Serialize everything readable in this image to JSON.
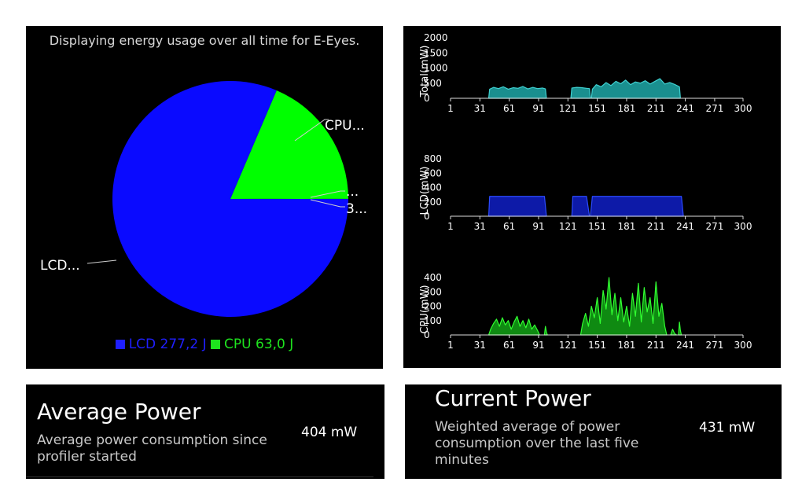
{
  "pie_panel": {
    "title": "Displaying energy usage over all time for E-Eyes.",
    "slice_labels": [
      "LCD...",
      "CPU...",
      "...",
      "3..."
    ],
    "legend": [
      {
        "label": "LCD 277,2 J",
        "color": "#1f1fff"
      },
      {
        "label": "CPU 63,0 J",
        "color": "#1ee31e"
      }
    ]
  },
  "colors": {
    "lcd": "#0a0aff",
    "cpu": "#00ff00",
    "total_line": "#3fd1d1",
    "total_fill": "#1a8f8f",
    "lcd_fill": "#0d1aa8",
    "lcd_line": "#2c4bff",
    "cpu_fill": "#0f8a12",
    "cpu_line": "#31ff31",
    "axis": "#dddddd"
  },
  "chart_data": [
    {
      "type": "pie",
      "slices": [
        {
          "name": "LCD",
          "value": 277.2,
          "color": "#0a0aff"
        },
        {
          "name": "CPU",
          "value": 63.0,
          "color": "#00ff00"
        },
        {
          "name": "",
          "value": 0.3,
          "color": "#00ff00"
        }
      ]
    },
    {
      "type": "area",
      "ylabel": "Total(mW)",
      "ylim": [
        0,
        2000
      ],
      "yticks": [
        0,
        500,
        1000,
        1500,
        2000
      ],
      "xlim": [
        1,
        300
      ],
      "xticks": [
        1,
        31,
        61,
        91,
        121,
        151,
        181,
        211,
        241,
        271,
        300
      ],
      "segments": [
        {
          "x": [
            40,
            41,
            45,
            50,
            55,
            60,
            65,
            70,
            75,
            80,
            85,
            90,
            95,
            98,
            99
          ],
          "y": [
            0,
            300,
            360,
            320,
            380,
            300,
            350,
            330,
            390,
            310,
            360,
            320,
            340,
            310,
            0
          ]
        },
        {
          "x": [
            124,
            125,
            130,
            135,
            140,
            143,
            144
          ],
          "y": [
            0,
            340,
            360,
            350,
            330,
            320,
            0
          ]
        },
        {
          "x": [
            145,
            146,
            150,
            155,
            160,
            165,
            170,
            175,
            180,
            185,
            190,
            195,
            200,
            205,
            210,
            215,
            220,
            225,
            230,
            235,
            236
          ],
          "y": [
            0,
            300,
            450,
            380,
            520,
            420,
            560,
            480,
            600,
            450,
            540,
            500,
            580,
            470,
            560,
            650,
            470,
            520,
            460,
            380,
            0
          ]
        }
      ]
    },
    {
      "type": "area",
      "ylabel": "LCD(mW)",
      "ylim": [
        0,
        800
      ],
      "yticks": [
        0,
        200,
        400,
        600,
        800
      ],
      "xlim": [
        1,
        300
      ],
      "xticks": [
        1,
        31,
        61,
        91,
        121,
        151,
        181,
        211,
        241,
        271,
        300
      ],
      "segments": [
        {
          "x": [
            40,
            41,
            97,
            99
          ],
          "y": [
            0,
            277,
            277,
            0
          ]
        },
        {
          "x": [
            125,
            126,
            140,
            143
          ],
          "y": [
            0,
            277,
            277,
            0
          ]
        },
        {
          "x": [
            144,
            146,
            237,
            239
          ],
          "y": [
            0,
            277,
            277,
            0
          ]
        }
      ]
    },
    {
      "type": "area",
      "ylabel": "CPU(mW)",
      "ylim": [
        0,
        400
      ],
      "yticks": [
        0,
        100,
        200,
        300,
        400
      ],
      "xlim": [
        1,
        300
      ],
      "xticks": [
        1,
        31,
        61,
        91,
        121,
        151,
        181,
        211,
        241,
        271,
        300
      ],
      "segments": [
        {
          "x": [
            40,
            42,
            45,
            48,
            51,
            54,
            57,
            60,
            63,
            66,
            69,
            72,
            75,
            78,
            81,
            84,
            87,
            90,
            92
          ],
          "y": [
            0,
            40,
            80,
            110,
            60,
            120,
            70,
            100,
            40,
            90,
            130,
            60,
            100,
            50,
            110,
            40,
            70,
            30,
            0
          ]
        },
        {
          "x": [
            97,
            98,
            99,
            100
          ],
          "y": [
            0,
            60,
            20,
            0
          ]
        },
        {
          "x": [
            134,
            136,
            139,
            142,
            145,
            148,
            151,
            154,
            157,
            160,
            163,
            166,
            169,
            172,
            175,
            178,
            181,
            184,
            187,
            190,
            193,
            196,
            199,
            202,
            205,
            208,
            211,
            214,
            217,
            220,
            222
          ],
          "y": [
            0,
            80,
            150,
            60,
            200,
            120,
            260,
            80,
            310,
            180,
            400,
            140,
            290,
            100,
            260,
            90,
            200,
            60,
            290,
            130,
            360,
            90,
            330,
            160,
            260,
            80,
            370,
            130,
            220,
            60,
            0
          ]
        },
        {
          "x": [
            226,
            228,
            230,
            232
          ],
          "y": [
            0,
            40,
            10,
            0
          ]
        },
        {
          "x": [
            234,
            235,
            236,
            237
          ],
          "y": [
            0,
            90,
            30,
            0
          ]
        }
      ]
    }
  ],
  "average_power": {
    "title": "Average Power",
    "description_lines": [
      "Average power consumption since",
      "profiler started"
    ],
    "value": "404 mW"
  },
  "current_power": {
    "title": "Current Power",
    "description_lines": [
      "Weighted average of power",
      "consumption over the last five",
      "minutes"
    ],
    "value": "431 mW"
  }
}
